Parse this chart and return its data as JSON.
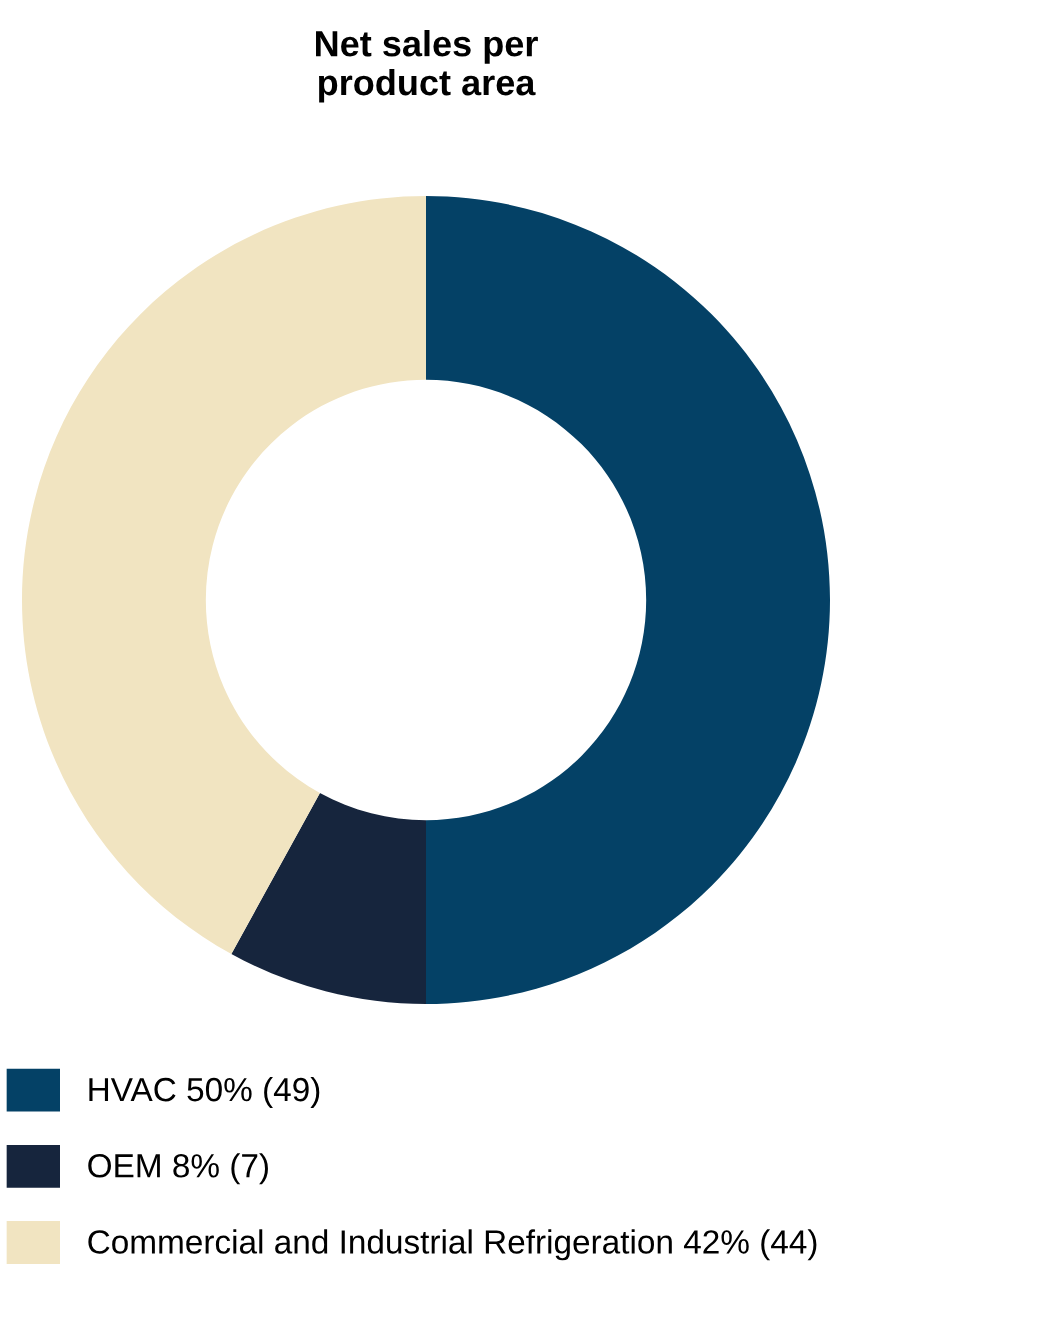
{
  "chart_data": {
    "type": "donut",
    "title": "Net sales per\nproduct area",
    "categories": [
      "HVAC 50% (49)",
      "OEM 8% (7)",
      "Commercial and Industrial Refrigeration 42% (44)"
    ],
    "values": [
      50,
      8,
      42
    ],
    "colors": [
      "#044166",
      "#16253d",
      "#f1e4c1"
    ],
    "legend": "bottom"
  }
}
